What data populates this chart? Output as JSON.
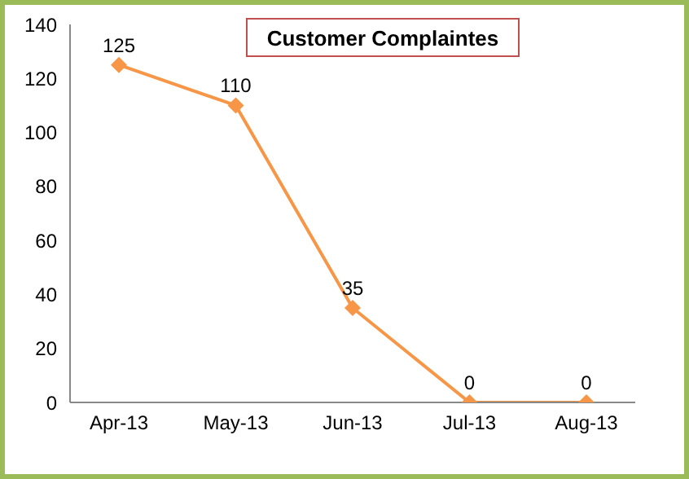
{
  "chart_data": {
    "type": "line",
    "title": "Customer Complaintes",
    "categories": [
      "Apr-13",
      "May-13",
      "Jun-13",
      "Jul-13",
      "Aug-13"
    ],
    "series": [
      {
        "color": "#f79646",
        "values": [
          125,
          110,
          35,
          0,
          0
        ]
      }
    ],
    "ylim": [
      0,
      140
    ],
    "yticks": [
      0,
      20,
      40,
      60,
      80,
      100,
      120,
      140
    ],
    "grid": false,
    "marker": "diamond",
    "line_style": "solid",
    "data_labels": true
  }
}
